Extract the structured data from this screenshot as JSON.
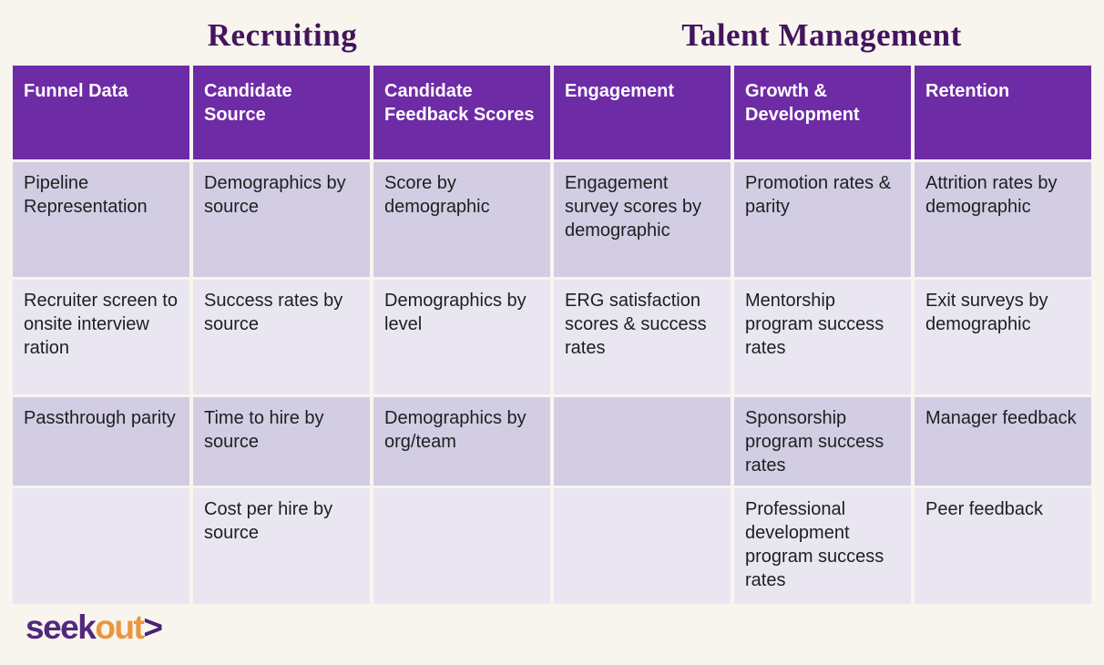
{
  "colors": {
    "page_background": "#f7f5ee",
    "header_background": "#6e2ba6",
    "header_text": "#ffffff",
    "row_dark": "#d3cde3",
    "row_light": "#e9e6f2",
    "title_text": "#45145e",
    "body_text": "#1e1e21",
    "logo_purple": "#52287c",
    "logo_orange": "#ea963d"
  },
  "chart_data": {
    "type": "table",
    "section_titles": [
      {
        "label": "Recruiting",
        "spans_columns": "0-2"
      },
      {
        "label": "Talent Management",
        "spans_columns": "3-5"
      }
    ],
    "columns": [
      "Funnel Data",
      "Candidate Source",
      "Candidate Feedback Scores",
      "Engagement",
      "Growth & Development",
      "Retention"
    ],
    "rows": [
      [
        "Pipeline Representation",
        "Demographics by source",
        "Score by demographic",
        "Engagement survey scores by demographic",
        "Promotion rates & parity",
        "Attrition rates by demographic"
      ],
      [
        "Recruiter screen to onsite interview ration",
        "Success rates by source",
        "Demographics by level",
        "ERG satisfaction scores & success rates",
        "Mentorship program success rates",
        "Exit surveys by demographic"
      ],
      [
        "Passthrough parity",
        "Time to hire by source",
        "Demographics by org/team",
        "",
        "Sponsorship program success rates",
        "Manager feedback"
      ],
      [
        "",
        "Cost per hire by source",
        "",
        "",
        "Professional development program success rates",
        "Peer feedback"
      ]
    ]
  },
  "logo": {
    "seek": "seek",
    "out": "out",
    "chevron": ">"
  }
}
